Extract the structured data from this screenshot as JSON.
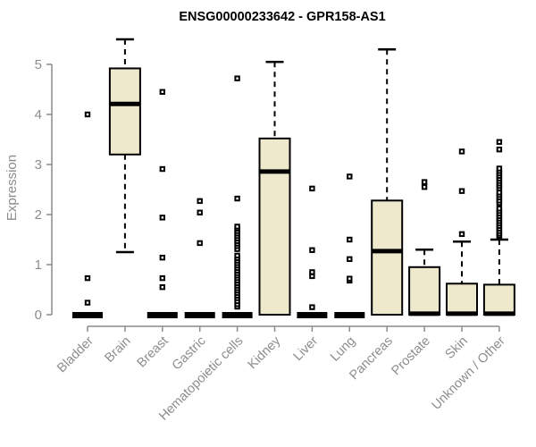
{
  "chart_data": {
    "type": "boxplot",
    "title": "ENSG00000233642 - GPR158-AS1",
    "ylabel": "Expression",
    "xlabel": "",
    "ylim": [
      0,
      5.5
    ],
    "yticks": [
      0,
      1,
      2,
      3,
      4,
      5
    ],
    "grid": false,
    "legend": "none",
    "categories": [
      "Bladder",
      "Brain",
      "Breast",
      "Gastric",
      "Hematopoietic cells",
      "Kidney",
      "Liver",
      "Lung",
      "Pancreas",
      "Prostate",
      "Skin",
      "Unknown / Other"
    ],
    "series": [
      {
        "category": "Bladder",
        "q1": 0,
        "median": 0,
        "q3": 0,
        "whisker_low": 0,
        "whisker_high": 0,
        "outliers": [
          0.24,
          0.73,
          4.0
        ]
      },
      {
        "category": "Brain",
        "q1": 3.2,
        "median": 4.21,
        "q3": 4.92,
        "whisker_low": 1.25,
        "whisker_high": 5.5,
        "outliers": []
      },
      {
        "category": "Breast",
        "q1": 0,
        "median": 0,
        "q3": 0,
        "whisker_low": 0,
        "whisker_high": 0,
        "outliers": [
          0.55,
          0.73,
          1.14,
          1.94,
          2.91,
          4.45
        ]
      },
      {
        "category": "Gastric",
        "q1": 0,
        "median": 0,
        "q3": 0,
        "whisker_low": 0,
        "whisker_high": 0,
        "outliers": [
          1.43,
          2.04,
          2.27
        ]
      },
      {
        "category": "Hematopoietic cells",
        "q1": 0,
        "median": 0,
        "q3": 0,
        "whisker_low": 0,
        "whisker_high": 0,
        "outliers": [
          0.16,
          0.21,
          0.27,
          0.33,
          0.38,
          0.43,
          0.48,
          0.53,
          0.58,
          0.63,
          0.68,
          0.73,
          0.78,
          0.83,
          0.88,
          0.93,
          0.98,
          1.03,
          1.08,
          1.13,
          1.18,
          1.31,
          1.37,
          1.42,
          1.47,
          1.52,
          1.57,
          1.62,
          1.67,
          1.72,
          1.76,
          2.32,
          4.72
        ]
      },
      {
        "category": "Kidney",
        "q1": 0,
        "median": 2.86,
        "q3": 3.52,
        "whisker_low": 0,
        "whisker_high": 5.05,
        "outliers": []
      },
      {
        "category": "Liver",
        "q1": 0,
        "median": 0,
        "q3": 0,
        "whisker_low": 0,
        "whisker_high": 0,
        "outliers": [
          0.15,
          0.77,
          0.85,
          1.29,
          2.52
        ]
      },
      {
        "category": "Lung",
        "q1": 0,
        "median": 0,
        "q3": 0,
        "whisker_low": 0,
        "whisker_high": 0,
        "outliers": [
          0.68,
          0.72,
          1.11,
          1.5,
          2.76
        ]
      },
      {
        "category": "Pancreas",
        "q1": 0,
        "median": 1.27,
        "q3": 2.28,
        "whisker_low": 0,
        "whisker_high": 5.3,
        "outliers": []
      },
      {
        "category": "Prostate",
        "q1": 0,
        "median": 0.02,
        "q3": 0.95,
        "whisker_low": 0,
        "whisker_high": 1.3,
        "outliers": [
          2.55,
          2.65
        ]
      },
      {
        "category": "Skin",
        "q1": 0,
        "median": 0.02,
        "q3": 0.62,
        "whisker_low": 0,
        "whisker_high": 1.46,
        "outliers": [
          1.61,
          2.47,
          3.26
        ]
      },
      {
        "category": "Unknown / Other",
        "q1": 0,
        "median": 0.02,
        "q3": 0.6,
        "whisker_low": 0,
        "whisker_high": 1.5,
        "outliers": [
          1.55,
          1.58,
          1.62,
          1.67,
          1.72,
          1.77,
          1.82,
          1.87,
          1.92,
          1.97,
          2.02,
          2.07,
          2.12,
          2.23,
          2.28,
          2.34,
          2.39,
          2.44,
          2.52,
          2.57,
          2.62,
          2.67,
          2.72,
          2.77,
          2.82,
          2.87,
          2.92,
          3.3,
          3.45
        ]
      }
    ],
    "colors": {
      "box_fill": "#EEE8CD",
      "box_border": "#000000",
      "median": "#000000",
      "whisker": "#000000",
      "outlier": "#000000",
      "axis": "#8C8C8C",
      "tick_label": "#8C8C8C",
      "title": "#000000"
    }
  }
}
